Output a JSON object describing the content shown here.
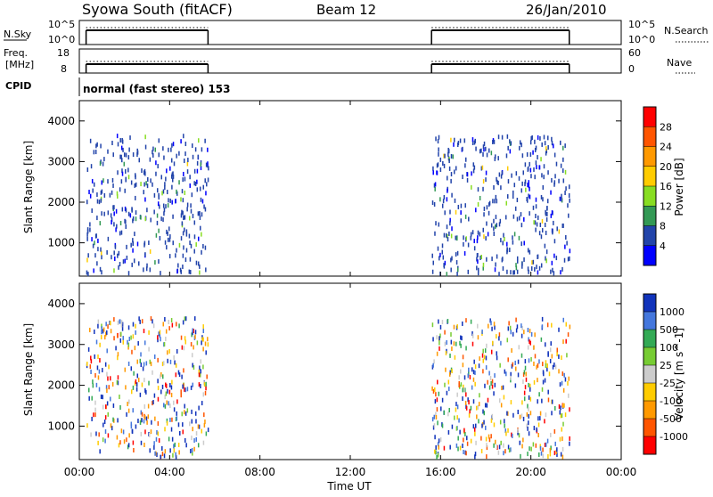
{
  "header": {
    "station": "Syowa South (fitACF)",
    "beam": "Beam 12",
    "date": "26/Jan/2010"
  },
  "top_panels": {
    "nsky_label": "N.Sky",
    "nsky_ticks": [
      "10^5",
      "10^0"
    ],
    "nsearch_label": "N.Search",
    "nsearch_ticks": [
      "10^5",
      "10^0"
    ],
    "freq_label_1": "Freq.",
    "freq_label_2": "[MHz]",
    "freq_ticks": [
      "18",
      "8"
    ],
    "nave_label": "Nave",
    "nave_ticks": [
      "60",
      "0"
    ],
    "cpid_label": "CPID",
    "cpid_value": "normal (fast stereo) 153"
  },
  "chart_data": [
    {
      "type": "heatmap",
      "name": "power",
      "ylabel": "Slant Range [km]",
      "yticks": [
        1000,
        2000,
        3000,
        4000
      ],
      "ylim": [
        180,
        4500
      ],
      "colorbar_label": "Power [dB]",
      "colorbar_ticks": [
        "28",
        "24",
        "20",
        "16",
        "12",
        "8",
        "4"
      ],
      "colorbar_colors": [
        "#ff0000",
        "#ff5500",
        "#ff9900",
        "#ffcc00",
        "#88dd22",
        "#339955",
        "#2244aa",
        "#0000ff"
      ],
      "data_windows_ut_hours": [
        [
          0.3,
          5.7
        ],
        [
          15.6,
          21.7
        ]
      ]
    },
    {
      "type": "heatmap",
      "name": "velocity",
      "ylabel": "Slant Range [km]",
      "yticks": [
        1000,
        2000,
        3000,
        4000
      ],
      "ylim": [
        180,
        4500
      ],
      "colorbar_label": "Velocity [m s^-1]",
      "colorbar_ticks": [
        "1000",
        "500",
        "100",
        "25",
        "-25",
        "-100",
        "-500",
        "-1000"
      ],
      "colorbar_colors": [
        "#1133bb",
        "#4477dd",
        "#33aa55",
        "#77cc33",
        "#cccccc",
        "#ffcc00",
        "#ff9900",
        "#ff5500",
        "#ff0000"
      ],
      "data_windows_ut_hours": [
        [
          0.3,
          5.7
        ],
        [
          15.6,
          21.7
        ]
      ]
    }
  ],
  "time_axis": {
    "ticks": [
      "00:00",
      "04:00",
      "08:00",
      "12:00",
      "16:00",
      "20:00",
      "00:00"
    ],
    "label": "Time UT"
  }
}
